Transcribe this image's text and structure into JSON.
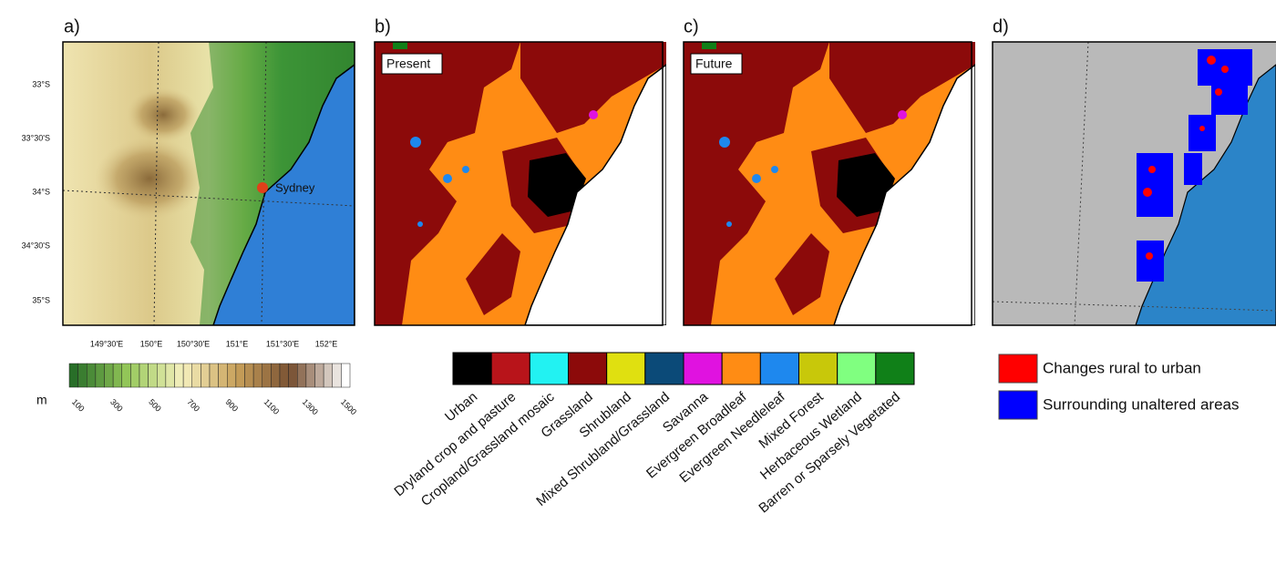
{
  "panels": [
    {
      "label": "a)"
    },
    {
      "label": "b)",
      "tag": "Present"
    },
    {
      "label": "c)",
      "tag": "Future"
    },
    {
      "label": "d)"
    }
  ],
  "map_a": {
    "lat_labels": [
      "33°S",
      "33°30'S",
      "34°S",
      "34°30'S",
      "35°S"
    ],
    "lon_labels": [
      "149°30'E",
      "150°E",
      "150°30'E",
      "151°E",
      "151°30'E",
      "152°E"
    ],
    "city": "Sydney"
  },
  "elevation_colorbar": {
    "unit": "m",
    "ticks": [
      100,
      300,
      500,
      700,
      900,
      1100,
      1300,
      1500
    ]
  },
  "land_use": {
    "categories": [
      {
        "name": "Urban",
        "color": "#000000"
      },
      {
        "name": "Dryland crop and pasture",
        "color": "#b8141a"
      },
      {
        "name": "Cropland/Grassland mosaic",
        "color": "#22f2f2"
      },
      {
        "name": "Grassland",
        "color": "#8c0a0a"
      },
      {
        "name": "Shrubland",
        "color": "#e0e010"
      },
      {
        "name": "Mixed Shrubland/Grassland",
        "color": "#0b4a78"
      },
      {
        "name": "Savanna",
        "color": "#e012e0"
      },
      {
        "name": "Evergreen Broadleaf",
        "color": "#ff8c14"
      },
      {
        "name": "Evergreen Needleleaf",
        "color": "#1e88ee"
      },
      {
        "name": "Mixed Forest",
        "color": "#c8c80a"
      },
      {
        "name": "Herbaceous Wetland",
        "color": "#80ff80"
      },
      {
        "name": "Barren or Sparsely Vegetated",
        "color": "#108018"
      }
    ]
  },
  "change_legend": [
    {
      "name": "Changes rural to urban",
      "color": "#ff0000"
    },
    {
      "name": "Surrounding unaltered areas",
      "color": "#0000ff"
    }
  ]
}
